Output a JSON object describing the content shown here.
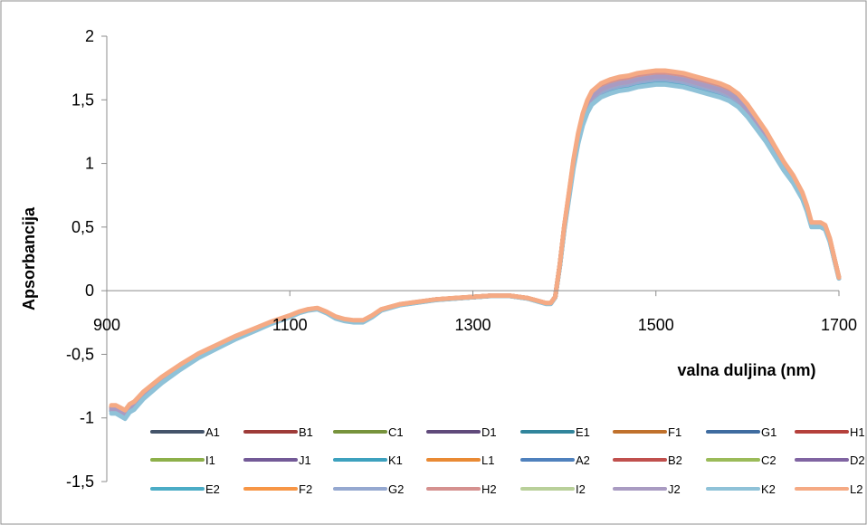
{
  "chart_data": {
    "type": "line",
    "title": "",
    "xlabel": "valna duljina (nm)",
    "ylabel": "Apsorbancija",
    "xlim": [
      900,
      1700
    ],
    "ylim": [
      -1.5,
      2
    ],
    "x_ticks": [
      "900",
      "1100",
      "1300",
      "1500",
      "1700"
    ],
    "y_ticks": [
      "2",
      "1,5",
      "1",
      "0,5",
      "0",
      "-0,5",
      "-1",
      "-1,5"
    ],
    "grid": false,
    "legend_position": "bottom",
    "base_curve": {
      "x": [
        905,
        910,
        915,
        920,
        925,
        930,
        940,
        960,
        980,
        1000,
        1020,
        1040,
        1060,
        1080,
        1100,
        1110,
        1120,
        1130,
        1140,
        1150,
        1160,
        1170,
        1180,
        1190,
        1200,
        1220,
        1240,
        1260,
        1280,
        1300,
        1320,
        1340,
        1360,
        1370,
        1380,
        1385,
        1390,
        1395,
        1400,
        1405,
        1410,
        1415,
        1420,
        1425,
        1430,
        1440,
        1450,
        1460,
        1470,
        1480,
        1490,
        1500,
        1510,
        1520,
        1530,
        1540,
        1550,
        1560,
        1570,
        1580,
        1590,
        1600,
        1610,
        1620,
        1630,
        1640,
        1650,
        1660,
        1665,
        1670,
        1675,
        1680,
        1685,
        1690,
        1695,
        1700
      ],
      "y": [
        -0.93,
        -0.93,
        -0.95,
        -0.97,
        -0.92,
        -0.9,
        -0.82,
        -0.7,
        -0.6,
        -0.51,
        -0.44,
        -0.37,
        -0.31,
        -0.25,
        -0.2,
        -0.17,
        -0.15,
        -0.14,
        -0.17,
        -0.21,
        -0.23,
        -0.24,
        -0.24,
        -0.2,
        -0.15,
        -0.11,
        -0.09,
        -0.07,
        -0.06,
        -0.05,
        -0.04,
        -0.04,
        -0.06,
        -0.08,
        -0.1,
        -0.1,
        -0.05,
        0.2,
        0.5,
        0.75,
        1.0,
        1.2,
        1.35,
        1.45,
        1.52,
        1.58,
        1.61,
        1.63,
        1.64,
        1.66,
        1.67,
        1.68,
        1.68,
        1.67,
        1.66,
        1.64,
        1.62,
        1.6,
        1.58,
        1.55,
        1.5,
        1.42,
        1.32,
        1.22,
        1.1,
        0.98,
        0.88,
        0.75,
        0.65,
        0.52,
        0.52,
        0.52,
        0.5,
        0.4,
        0.25,
        0.1
      ]
    },
    "series": [
      {
        "name": "A1",
        "color": "#44546A",
        "offset": 0.0
      },
      {
        "name": "B1",
        "color": "#9E3B38",
        "offset": -0.01
      },
      {
        "name": "C1",
        "color": "#77933C",
        "offset": 0.0
      },
      {
        "name": "D1",
        "color": "#604A7B",
        "offset": 0.0
      },
      {
        "name": "E1",
        "color": "#31859C",
        "offset": -0.01
      },
      {
        "name": "F1",
        "color": "#C0712C",
        "offset": 0.01
      },
      {
        "name": "G1",
        "color": "#3F6CA0",
        "offset": 0.0
      },
      {
        "name": "H1",
        "color": "#B5403B",
        "offset": 0.01
      },
      {
        "name": "I1",
        "color": "#8DB04A",
        "offset": 0.0
      },
      {
        "name": "J1",
        "color": "#735A97",
        "offset": 0.0
      },
      {
        "name": "K1",
        "color": "#3DA1BE",
        "offset": -0.02
      },
      {
        "name": "L1",
        "color": "#E98A34",
        "offset": 0.01
      },
      {
        "name": "A2",
        "color": "#4F81BD",
        "offset": -0.01
      },
      {
        "name": "B2",
        "color": "#C0504D",
        "offset": 0.02
      },
      {
        "name": "C2",
        "color": "#9BBB59",
        "offset": 0.0
      },
      {
        "name": "D2",
        "color": "#8064A2",
        "offset": 0.0
      },
      {
        "name": "E2",
        "color": "#4BACC6",
        "offset": -0.03
      },
      {
        "name": "F2",
        "color": "#F79646",
        "offset": 0.03
      },
      {
        "name": "G2",
        "color": "#95A8D0",
        "offset": -0.02
      },
      {
        "name": "H2",
        "color": "#D5918F",
        "offset": 0.02
      },
      {
        "name": "I2",
        "color": "#B9D09A",
        "offset": 0.0
      },
      {
        "name": "J2",
        "color": "#A99BC2",
        "offset": 0.0
      },
      {
        "name": "K2",
        "color": "#8FC2D8",
        "offset": -0.06
      },
      {
        "name": "L2",
        "color": "#F5AA84",
        "offset": 0.05
      }
    ]
  }
}
